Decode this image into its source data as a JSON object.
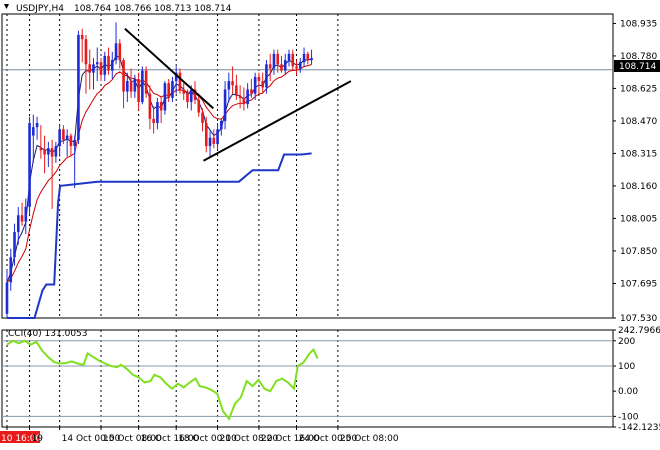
{
  "header": {
    "symbol_label": "USDJPY,H4",
    "ohlc_label": "108.764 108.766 108.713 108.714"
  },
  "price_badge": "108.714",
  "cci_header": "CCI(40) 131.0053",
  "colors": {
    "bull": "#1e2bd6",
    "bear": "#e81a1a",
    "ma_dark": "#1a1a6e",
    "ma_red": "#cc0000",
    "lower_line": "#1e36c8",
    "cci": "#80e020",
    "trendline": "#000000",
    "grid": "#000000",
    "badge_bg": "#000000"
  },
  "chart_data": [
    {
      "type": "candlestick",
      "ylim": [
        107.53,
        108.98
      ],
      "yticks": [
        "108.935",
        "108.780",
        "108.625",
        "108.470",
        "108.315",
        "108.160",
        "108.005",
        "107.850",
        "107.695",
        "107.530"
      ],
      "ytick_values": [
        108.935,
        108.78,
        108.625,
        108.47,
        108.315,
        108.16,
        108.005,
        107.85,
        107.695,
        107.53
      ],
      "xticks": [
        "10 16:00",
        "19",
        "14 Oct 00:00",
        "15 Oct 08:00",
        "16 Oct 16:00",
        "18 Oct 00:00",
        "21 Oct 08:00",
        "22 Oct 16:00",
        "24 Oct 00:00",
        "25 Oct 08:00"
      ],
      "xtick_index": [
        0,
        6,
        14,
        25,
        35,
        45,
        56,
        67,
        77,
        88
      ],
      "current_price": 108.714,
      "candles": [
        [
          107.55,
          107.76,
          107.53,
          107.7
        ],
        [
          107.7,
          107.86,
          107.66,
          107.82
        ],
        [
          107.82,
          107.98,
          107.78,
          107.94
        ],
        [
          107.94,
          108.06,
          107.88,
          108.02
        ],
        [
          108.02,
          108.08,
          107.97,
          107.99
        ],
        [
          107.99,
          108.1,
          107.93,
          108.06
        ],
        [
          108.06,
          108.49,
          108.02,
          108.46
        ],
        [
          108.4,
          108.5,
          108.27,
          108.44
        ],
        [
          108.44,
          108.49,
          108.38,
          108.46
        ],
        [
          108.34,
          108.45,
          108.29,
          108.33
        ],
        [
          108.33,
          108.4,
          108.22,
          108.31
        ],
        [
          108.31,
          108.37,
          108.25,
          108.34
        ],
        [
          108.34,
          108.38,
          108.05,
          108.3
        ],
        [
          108.3,
          108.37,
          108.27,
          108.35
        ],
        [
          108.35,
          108.45,
          108.3,
          108.43
        ],
        [
          108.43,
          108.45,
          108.36,
          108.38
        ],
        [
          108.38,
          108.43,
          108.3,
          108.4
        ],
        [
          108.4,
          108.41,
          108.3,
          108.35
        ],
        [
          108.35,
          108.4,
          108.15,
          108.38
        ],
        [
          108.38,
          108.9,
          108.36,
          108.88
        ],
        [
          108.88,
          108.91,
          108.75,
          108.86
        ],
        [
          108.86,
          108.88,
          108.6,
          108.74
        ],
        [
          108.74,
          108.81,
          108.62,
          108.7
        ],
        [
          108.7,
          108.77,
          108.62,
          108.74
        ],
        [
          108.74,
          108.82,
          108.66,
          108.75
        ],
        [
          108.75,
          108.77,
          108.66,
          108.69
        ],
        [
          108.69,
          108.8,
          108.66,
          108.78
        ],
        [
          108.78,
          108.82,
          108.69,
          108.71
        ],
        [
          108.71,
          108.8,
          108.67,
          108.76
        ],
        [
          108.76,
          108.94,
          108.74,
          108.84
        ],
        [
          108.84,
          108.86,
          108.72,
          108.76
        ],
        [
          108.76,
          108.77,
          108.53,
          108.61
        ],
        [
          108.61,
          108.7,
          108.56,
          108.66
        ],
        [
          108.66,
          108.72,
          108.58,
          108.61
        ],
        [
          108.61,
          108.69,
          108.58,
          108.67
        ],
        [
          108.67,
          108.7,
          108.52,
          108.56
        ],
        [
          108.56,
          108.73,
          108.55,
          108.71
        ],
        [
          108.71,
          108.73,
          108.58,
          108.6
        ],
        [
          108.6,
          108.64,
          108.43,
          108.48
        ],
        [
          108.48,
          108.54,
          108.41,
          108.46
        ],
        [
          108.46,
          108.58,
          108.43,
          108.56
        ],
        [
          108.56,
          108.59,
          108.46,
          108.52
        ],
        [
          108.52,
          108.66,
          108.5,
          108.65
        ],
        [
          108.65,
          108.67,
          108.56,
          108.58
        ],
        [
          108.58,
          108.68,
          108.56,
          108.66
        ],
        [
          108.66,
          108.73,
          108.6,
          108.7
        ],
        [
          108.7,
          108.72,
          108.6,
          108.62
        ],
        [
          108.62,
          108.65,
          108.57,
          108.6
        ],
        [
          108.6,
          108.62,
          108.53,
          108.56
        ],
        [
          108.56,
          108.64,
          108.52,
          108.62
        ],
        [
          108.62,
          108.66,
          108.55,
          108.57
        ],
        [
          108.57,
          108.6,
          108.49,
          108.51
        ],
        [
          108.51,
          108.53,
          108.42,
          108.46
        ],
        [
          108.46,
          108.49,
          108.32,
          108.35
        ],
        [
          108.35,
          108.42,
          108.3,
          108.39
        ],
        [
          108.39,
          108.43,
          108.34,
          108.36
        ],
        [
          108.36,
          108.46,
          108.33,
          108.43
        ],
        [
          108.43,
          108.48,
          108.4,
          108.47
        ],
        [
          108.47,
          108.66,
          108.43,
          108.62
        ],
        [
          108.62,
          108.7,
          108.56,
          108.66
        ],
        [
          108.66,
          108.73,
          108.6,
          108.64
        ],
        [
          108.64,
          108.69,
          108.57,
          108.59
        ],
        [
          108.59,
          108.64,
          108.53,
          108.58
        ],
        [
          108.58,
          108.63,
          108.52,
          108.55
        ],
        [
          108.55,
          108.65,
          108.53,
          108.62
        ],
        [
          108.62,
          108.67,
          108.58,
          108.6
        ],
        [
          108.6,
          108.7,
          108.57,
          108.68
        ],
        [
          108.68,
          108.7,
          108.6,
          108.66
        ],
        [
          108.66,
          108.7,
          108.6,
          108.63
        ],
        [
          108.63,
          108.76,
          108.6,
          108.74
        ],
        [
          108.74,
          108.79,
          108.66,
          108.72
        ],
        [
          108.72,
          108.81,
          108.69,
          108.79
        ],
        [
          108.79,
          108.81,
          108.7,
          108.74
        ],
        [
          108.74,
          108.78,
          108.7,
          108.71
        ],
        [
          108.71,
          108.79,
          108.69,
          108.76
        ],
        [
          108.76,
          108.81,
          108.73,
          108.79
        ],
        [
          108.79,
          108.81,
          108.71,
          108.73
        ],
        [
          108.73,
          108.76,
          108.69,
          108.72
        ],
        [
          108.72,
          108.77,
          108.7,
          108.75
        ],
        [
          108.75,
          108.82,
          108.73,
          108.79
        ],
        [
          108.79,
          108.8,
          108.74,
          108.76
        ],
        [
          108.76,
          108.81,
          108.74,
          108.77
        ]
      ],
      "lines": {
        "lower_line": [
          [
            0,
            107.53
          ],
          [
            10,
            107.53
          ],
          [
            14,
            107.53
          ],
          [
            18,
            107.66
          ],
          [
            20,
            107.69
          ],
          [
            24,
            107.69
          ],
          [
            26,
            108.08
          ],
          [
            27,
            108.16
          ],
          [
            46,
            108.18
          ],
          [
            98,
            108.18
          ],
          [
            118,
            108.18
          ],
          [
            125,
            108.235
          ],
          [
            138,
            108.235
          ],
          [
            141,
            108.31
          ],
          [
            150,
            108.31
          ],
          [
            155,
            108.315
          ]
        ]
      },
      "trendlines": [
        [
          [
            60,
            108.91
          ],
          [
            105,
            108.53
          ]
        ],
        [
          [
            100,
            108.28
          ],
          [
            175,
            108.66
          ]
        ]
      ]
    },
    {
      "type": "line",
      "title": "CCI(40) 131.0053",
      "ylim": [
        -142.1235,
        242.7966
      ],
      "yticks": [
        "242.7966",
        "200",
        "100",
        "0.00",
        "-100",
        "-142.1235"
      ],
      "ytick_values": [
        242.7966,
        200,
        100,
        0,
        -100,
        -142.1235
      ],
      "levels": [
        200,
        100,
        -100
      ],
      "values": [
        [
          0,
          185
        ],
        [
          3,
          200
        ],
        [
          6,
          190
        ],
        [
          9,
          200
        ],
        [
          12,
          185
        ],
        [
          15,
          195
        ],
        [
          18,
          160
        ],
        [
          21,
          135
        ],
        [
          24,
          115
        ],
        [
          27,
          110
        ],
        [
          30,
          112
        ],
        [
          33,
          118
        ],
        [
          36,
          110
        ],
        [
          39,
          105
        ],
        [
          41,
          150
        ],
        [
          44,
          135
        ],
        [
          47,
          120
        ],
        [
          50,
          110
        ],
        [
          53,
          100
        ],
        [
          56,
          95
        ],
        [
          58,
          105
        ],
        [
          61,
          88
        ],
        [
          64,
          65
        ],
        [
          67,
          55
        ],
        [
          70,
          35
        ],
        [
          73,
          40
        ],
        [
          75,
          65
        ],
        [
          78,
          55
        ],
        [
          81,
          30
        ],
        [
          84,
          10
        ],
        [
          87,
          30
        ],
        [
          90,
          15
        ],
        [
          93,
          35
        ],
        [
          96,
          50
        ],
        [
          98,
          20
        ],
        [
          101,
          15
        ],
        [
          104,
          5
        ],
        [
          107,
          -10
        ],
        [
          110,
          -80
        ],
        [
          113,
          -110
        ],
        [
          116,
          -50
        ],
        [
          119,
          -25
        ],
        [
          122,
          40
        ],
        [
          125,
          20
        ],
        [
          128,
          45
        ],
        [
          131,
          10
        ],
        [
          134,
          0
        ],
        [
          137,
          40
        ],
        [
          140,
          50
        ],
        [
          143,
          35
        ],
        [
          146,
          10
        ],
        [
          148,
          100
        ],
        [
          151,
          115
        ],
        [
          154,
          150
        ],
        [
          156,
          165
        ],
        [
          158,
          130
        ]
      ],
      "last_value": 131.0053
    }
  ]
}
